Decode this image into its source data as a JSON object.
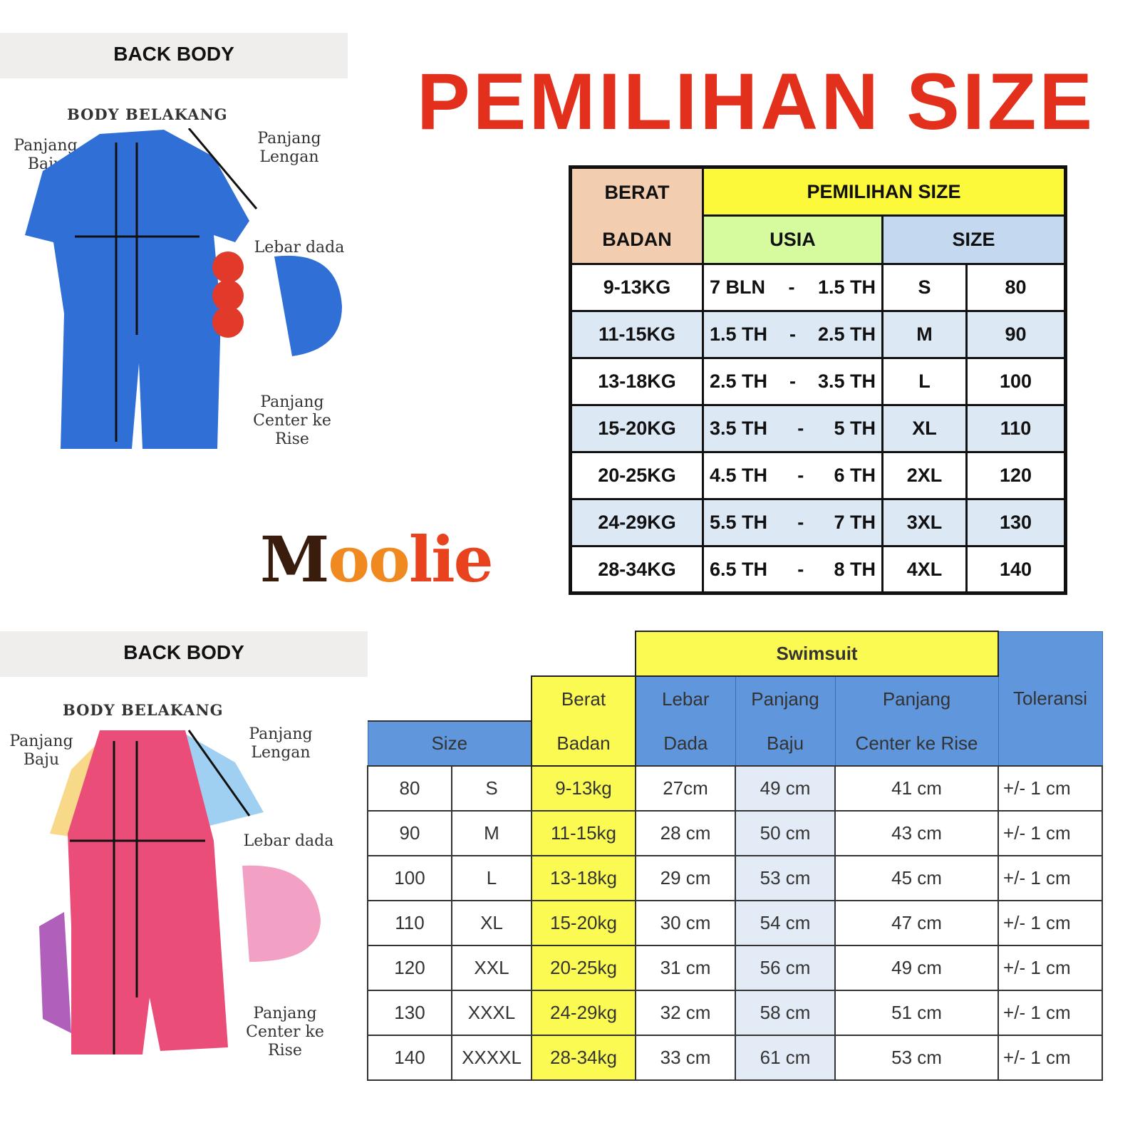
{
  "title": "PEMILIHAN SIZE",
  "logo": "Moolie",
  "illustrations": [
    {
      "header": "BACK BODY",
      "subtitle": "BODY BELAKANG",
      "label_panjang_baju": "Panjang Baju",
      "label_panjang_lengan": "Panjang Lengan",
      "label_lebar_dada": "Lebar dada",
      "label_center_rise": "Panjang Center ke Rise",
      "suit_color": "#2f6fd6"
    },
    {
      "header": "BACK BODY",
      "subtitle": "BODY BELAKANG",
      "label_panjang_baju": "Panjang Baju",
      "label_panjang_lengan": "Panjang Lengan",
      "label_lebar_dada": "Lebar dada",
      "label_center_rise": "Panjang Center ke Rise",
      "suit_color": "#ea4d78"
    }
  ],
  "size_table": {
    "headers": {
      "berat_1": "BERAT",
      "berat_2": "BADAN",
      "pemilihan": "PEMILIHAN SIZE",
      "usia": "USIA",
      "size": "SIZE"
    },
    "rows": [
      {
        "berat": "9-13KG",
        "usia_from": "7 BLN",
        "usia_to": "1.5 TH",
        "size": "S",
        "num": "80"
      },
      {
        "berat": "11-15KG",
        "usia_from": "1.5 TH",
        "usia_to": "2.5 TH",
        "size": "M",
        "num": "90"
      },
      {
        "berat": "13-18KG",
        "usia_from": "2.5 TH",
        "usia_to": "3.5 TH",
        "size": "L",
        "num": "100"
      },
      {
        "berat": "15-20KG",
        "usia_from": "3.5 TH",
        "usia_to": "5 TH",
        "size": "XL",
        "num": "110"
      },
      {
        "berat": "20-25KG",
        "usia_from": "4.5 TH",
        "usia_to": "6 TH",
        "size": "2XL",
        "num": "120"
      },
      {
        "berat": "24-29KG",
        "usia_from": "5.5 TH",
        "usia_to": "7 TH",
        "size": "3XL",
        "num": "130"
      },
      {
        "berat": "28-34KG",
        "usia_from": "6.5 TH",
        "usia_to": "8 TH",
        "size": "4XL",
        "num": "140"
      }
    ]
  },
  "measure_table": {
    "headers": {
      "swimsuit": "Swimsuit",
      "size": "Size",
      "berat_1": "Berat",
      "berat_2": "Badan",
      "lebar_1": "Lebar",
      "lebar_2": "Dada",
      "pb_1": "Panjang",
      "pb_2": "Baju",
      "pc_1": "Panjang",
      "pc_2": "Center ke Rise",
      "toleransi": "Toleransi"
    },
    "rows": [
      {
        "num": "80",
        "size": "S",
        "berat": "9-13kg",
        "lebar": "27cm",
        "panjang": "49 cm",
        "rise": "41 cm",
        "tol": "+/- 1 cm"
      },
      {
        "num": "90",
        "size": "M",
        "berat": "11-15kg",
        "lebar": "28 cm",
        "panjang": "50 cm",
        "rise": "43 cm",
        "tol": "+/- 1 cm"
      },
      {
        "num": "100",
        "size": "L",
        "berat": "13-18kg",
        "lebar": "29 cm",
        "panjang": "53 cm",
        "rise": "45 cm",
        "tol": "+/- 1 cm"
      },
      {
        "num": "110",
        "size": "XL",
        "berat": "15-20kg",
        "lebar": "30 cm",
        "panjang": "54 cm",
        "rise": "47 cm",
        "tol": "+/- 1 cm"
      },
      {
        "num": "120",
        "size": "XXL",
        "berat": "20-25kg",
        "lebar": "31 cm",
        "panjang": "56 cm",
        "rise": "49 cm",
        "tol": "+/- 1 cm"
      },
      {
        "num": "130",
        "size": "XXXL",
        "berat": "24-29kg",
        "lebar": "32 cm",
        "panjang": "58 cm",
        "rise": "51 cm",
        "tol": "+/- 1 cm"
      },
      {
        "num": "140",
        "size": "XXXXL",
        "berat": "28-34kg",
        "lebar": "33 cm",
        "panjang": "61 cm",
        "rise": "53 cm",
        "tol": "+/- 1 cm"
      }
    ]
  }
}
